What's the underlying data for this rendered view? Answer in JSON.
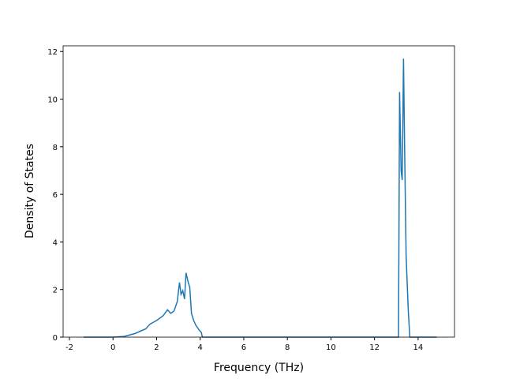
{
  "chart_data": {
    "type": "line",
    "xlabel": "Frequency (THz)",
    "ylabel": "Density of States",
    "x": [
      -1.35,
      0,
      0.5,
      1,
      1.5,
      1.7,
      2,
      2.3,
      2.5,
      2.65,
      2.8,
      2.95,
      3.05,
      3.12,
      3.2,
      3.28,
      3.35,
      3.45,
      3.52,
      3.6,
      3.7,
      3.8,
      3.95,
      4.05,
      4.1,
      13.1,
      13.15,
      13.22,
      13.27,
      13.33,
      13.38,
      13.45,
      13.55,
      13.62,
      14.85
    ],
    "series": [
      {
        "color": "#1f77b4",
        "values": [
          0,
          0,
          0.03,
          0.15,
          0.35,
          0.55,
          0.7,
          0.9,
          1.15,
          1.0,
          1.1,
          1.5,
          2.3,
          1.8,
          1.95,
          1.6,
          2.7,
          2.3,
          2.1,
          1.0,
          0.7,
          0.5,
          0.3,
          0.2,
          0,
          0,
          10.3,
          7.0,
          6.6,
          11.7,
          8.0,
          3.4,
          1.1,
          0,
          0
        ]
      }
    ],
    "xlim": [
      -2.29,
      15.67
    ],
    "ylim": [
      0,
      12.24
    ],
    "xticks": [
      -2,
      0,
      2,
      4,
      6,
      8,
      10,
      12,
      14
    ],
    "yticks": [
      0,
      2,
      4,
      6,
      8,
      10,
      12
    ]
  }
}
